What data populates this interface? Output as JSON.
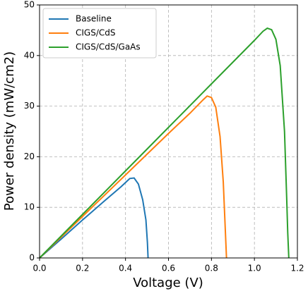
{
  "chart_data": {
    "type": "line",
    "x_label": "Voltage (V)",
    "y_label": "Power density (mW/cm2)",
    "xlim": [
      0,
      1.2
    ],
    "ylim": [
      0,
      50
    ],
    "xticks": [
      {
        "value": 0,
        "label": "0.0"
      },
      0.2,
      0.4,
      0.6,
      0.8,
      {
        "value": 1,
        "label": "1.0"
      },
      1.2
    ],
    "yticks": [
      0,
      10,
      20,
      30,
      40,
      50
    ],
    "grid": true,
    "legend": "upper-left",
    "series": [
      {
        "name": "Baseline",
        "color": "#1f77b4",
        "x": [
          0,
          0.1,
          0.2,
          0.3,
          0.38,
          0.4,
          0.42,
          0.44,
          0.46,
          0.48,
          0.495,
          0.502,
          0.505
        ],
        "values": [
          0,
          3.7,
          7.5,
          11.2,
          14.1,
          14.9,
          15.7,
          15.8,
          14.6,
          11.5,
          7.5,
          3,
          0
        ]
      },
      {
        "name": "CIGS/CdS",
        "color": "#ff7f0e",
        "x": [
          0,
          0.2,
          0.4,
          0.6,
          0.7,
          0.76,
          0.78,
          0.8,
          0.82,
          0.84,
          0.855,
          0.865,
          0.87
        ],
        "values": [
          0,
          8.2,
          16.4,
          24.6,
          28.6,
          31.2,
          32.0,
          31.7,
          29.8,
          24,
          15,
          5,
          0
        ]
      },
      {
        "name": "CIGS/CdS/GaAs",
        "color": "#2ca02c",
        "x": [
          0,
          0.2,
          0.4,
          0.6,
          0.8,
          1.0,
          1.04,
          1.06,
          1.08,
          1.1,
          1.12,
          1.14,
          1.15,
          1.155,
          1.16
        ],
        "values": [
          0,
          8.6,
          17.2,
          25.8,
          34.4,
          43,
          44.8,
          45.4,
          45.1,
          43.2,
          38,
          25,
          12,
          5,
          0
        ]
      }
    ]
  }
}
